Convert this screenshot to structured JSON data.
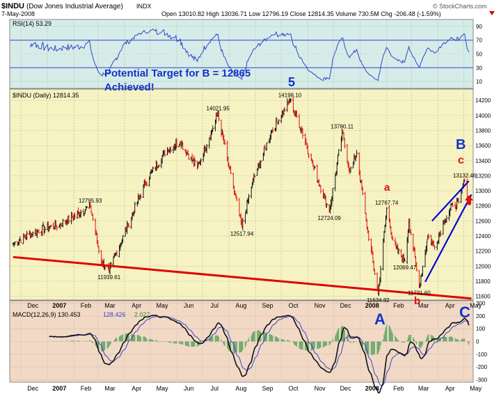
{
  "header": {
    "symbol": "$INDU",
    "name": "(Dow Jones Industrial Average)",
    "exchange": "INDX",
    "date": "7-May-2008",
    "quote": "Open 13010.82 High 13036.71 Low 12796.19 Close 12814.35 Volume 730.5M Chg -206.48 (-1.59%)",
    "credit": "© StockCharts.com"
  },
  "rsi": {
    "label": "RSI(14) 53.29",
    "ticks": [
      "90",
      "70",
      "50",
      "30",
      "10"
    ]
  },
  "price": {
    "label": "$INDU (Daily) 12814.35",
    "ticks": [
      "14200",
      "14000",
      "13800",
      "13600",
      "13400",
      "13200",
      "13000",
      "12800",
      "12600",
      "12400",
      "12200",
      "12000",
      "11800",
      "11600"
    ]
  },
  "macd": {
    "label": "MACD(12,26,9) 130.453",
    "signal": "128.426",
    "hist": "2.027",
    "ticks": [
      "300",
      "200",
      "100",
      "0",
      "-100",
      "-200",
      "-300"
    ]
  },
  "x_axis": {
    "labels": [
      "Dec",
      "2007",
      "Feb",
      "Mar",
      "Apr",
      "May",
      "Jun",
      "Jul",
      "Aug",
      "Sep",
      "Oct",
      "Nov",
      "Dec",
      "2008",
      "Feb",
      "Mar",
      "Apr",
      "May"
    ]
  },
  "annotations": {
    "target_line1": "Potential Target for B = 12865",
    "target_line2": "Achieved!",
    "wave5": "5",
    "waveA": "A",
    "wavea": "a",
    "waveB": "B",
    "waveb": "b",
    "wavec": "c",
    "waveC": "C"
  },
  "chart_data": {
    "type": "ohlc",
    "title": "$INDU (Dow Jones Industrial Average) INDX",
    "labeled_points": [
      {
        "label": "12795.93",
        "value": 12795.93,
        "date": "2007-02-20"
      },
      {
        "label": "11939.61",
        "value": 11939.61,
        "date": "2007-03-14"
      },
      {
        "label": "14021.95",
        "value": 14021.95,
        "date": "2007-07-19"
      },
      {
        "label": "12517.94",
        "value": 12517.94,
        "date": "2007-08-16"
      },
      {
        "label": "14198.10",
        "value": 14198.1,
        "date": "2007-10-11"
      },
      {
        "label": "12724.09",
        "value": 12724.09,
        "date": "2007-11-26"
      },
      {
        "label": "13780.11",
        "value": 13780.11,
        "date": "2007-12-11"
      },
      {
        "label": "11634.82",
        "value": 11634.82,
        "date": "2008-01-22"
      },
      {
        "label": "12767.74",
        "value": 12767.74,
        "date": "2008-02-01"
      },
      {
        "label": "12069.47",
        "value": 12069.47,
        "date": "2008-02-22"
      },
      {
        "label": "11731.60",
        "value": 11731.6,
        "date": "2008-03-10"
      },
      {
        "label": "13132.46",
        "value": 13132.46,
        "date": "2008-05-02"
      }
    ],
    "price_ylim": [
      11550,
      14350
    ],
    "rsi_ylim": [
      0,
      100
    ],
    "macd_ylim": [
      -320,
      320
    ],
    "last_close": 12814.35,
    "last_rsi": 53.29,
    "last_macd": 130.453,
    "last_signal": 128.426,
    "last_hist": 2.027,
    "anchors": [
      {
        "date": "2006-11-22",
        "value": 12300
      },
      {
        "date": "2006-12-15",
        "value": 12450
      },
      {
        "date": "2007-01-15",
        "value": 12550
      },
      {
        "date": "2007-02-20",
        "value": 12795.93
      },
      {
        "date": "2007-03-05",
        "value": 12050
      },
      {
        "date": "2007-03-14",
        "value": 11939.61
      },
      {
        "date": "2007-04-05",
        "value": 12550
      },
      {
        "date": "2007-04-25",
        "value": 13100
      },
      {
        "date": "2007-05-20",
        "value": 13550
      },
      {
        "date": "2007-06-05",
        "value": 13650
      },
      {
        "date": "2007-06-25",
        "value": 13300
      },
      {
        "date": "2007-07-19",
        "value": 14021.95
      },
      {
        "date": "2007-08-01",
        "value": 13300
      },
      {
        "date": "2007-08-16",
        "value": 12517.94
      },
      {
        "date": "2007-08-28",
        "value": 13100
      },
      {
        "date": "2007-09-20",
        "value": 13800
      },
      {
        "date": "2007-10-11",
        "value": 14198.1
      },
      {
        "date": "2007-10-25",
        "value": 13800
      },
      {
        "date": "2007-11-05",
        "value": 13400
      },
      {
        "date": "2007-11-26",
        "value": 12724.09
      },
      {
        "date": "2007-12-11",
        "value": 13780.11
      },
      {
        "date": "2007-12-20",
        "value": 13250
      },
      {
        "date": "2007-12-28",
        "value": 13500
      },
      {
        "date": "2008-01-08",
        "value": 12600
      },
      {
        "date": "2008-01-22",
        "value": 11634.82
      },
      {
        "date": "2008-02-01",
        "value": 12767.74
      },
      {
        "date": "2008-02-10",
        "value": 12250
      },
      {
        "date": "2008-02-22",
        "value": 12069.47
      },
      {
        "date": "2008-02-27",
        "value": 12600
      },
      {
        "date": "2008-03-10",
        "value": 11731.6
      },
      {
        "date": "2008-03-20",
        "value": 12400
      },
      {
        "date": "2008-03-28",
        "value": 12250
      },
      {
        "date": "2008-04-08",
        "value": 12600
      },
      {
        "date": "2008-04-18",
        "value": 12800
      },
      {
        "date": "2008-04-25",
        "value": 12850
      },
      {
        "date": "2008-05-02",
        "value": 13132.46
      },
      {
        "date": "2008-05-07",
        "value": 12814.35
      }
    ],
    "trendlines": [
      {
        "name": "support",
        "color": "#e00000",
        "points": [
          {
            "date": "2006-11-22",
            "value": 12120
          },
          {
            "date": "2008-05-10",
            "value": 11570
          }
        ]
      },
      {
        "name": "wedge-upper",
        "color": "#0000dd",
        "points": [
          {
            "date": "2008-03-25",
            "value": 12600
          },
          {
            "date": "2008-05-07",
            "value": 13130
          }
        ]
      },
      {
        "name": "wedge-lower",
        "color": "#0000dd",
        "points": [
          {
            "date": "2008-03-17",
            "value": 11790
          },
          {
            "date": "2008-05-10",
            "value": 12950
          }
        ]
      }
    ]
  }
}
